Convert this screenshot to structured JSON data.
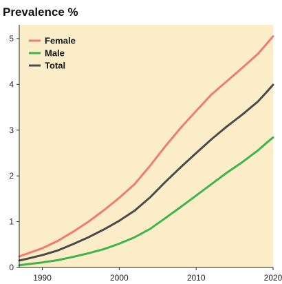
{
  "chart_data": {
    "type": "line",
    "title": "Prevalence %",
    "xlabel": "",
    "ylabel": "",
    "xlim": [
      1987,
      2020
    ],
    "ylim": [
      0,
      5.3
    ],
    "x_ticks": [
      1990,
      2000,
      2010,
      2020
    ],
    "y_ticks": [
      0,
      1,
      2,
      3,
      4,
      5
    ],
    "grid": false,
    "legend_position": "top-left",
    "background_color": "#fbedc8",
    "series": [
      {
        "name": "Female",
        "color": "#f07b6e",
        "x": [
          1987,
          1988,
          1990,
          1992,
          1994,
          1996,
          1998,
          2000,
          2002,
          2004,
          2006,
          2008,
          2010,
          2012,
          2014,
          2016,
          2018,
          2019,
          2020
        ],
        "y": [
          0.24,
          0.3,
          0.42,
          0.58,
          0.78,
          1.0,
          1.25,
          1.52,
          1.82,
          2.22,
          2.65,
          3.05,
          3.42,
          3.78,
          4.07,
          4.36,
          4.66,
          4.85,
          5.05
        ]
      },
      {
        "name": "Male",
        "color": "#3cb44b",
        "x": [
          1987,
          1988,
          1990,
          1992,
          1994,
          1996,
          1998,
          2000,
          2002,
          2004,
          2006,
          2008,
          2010,
          2012,
          2014,
          2016,
          2018,
          2019,
          2020
        ],
        "y": [
          0.05,
          0.07,
          0.11,
          0.16,
          0.23,
          0.31,
          0.4,
          0.52,
          0.66,
          0.84,
          1.08,
          1.32,
          1.57,
          1.82,
          2.07,
          2.3,
          2.55,
          2.7,
          2.84
        ]
      },
      {
        "name": "Total",
        "color": "#4a4a4a",
        "x": [
          1987,
          1988,
          1990,
          1992,
          1994,
          1996,
          1998,
          2000,
          2002,
          2004,
          2006,
          2008,
          2010,
          2012,
          2014,
          2016,
          2018,
          2019,
          2020
        ],
        "y": [
          0.15,
          0.19,
          0.27,
          0.37,
          0.51,
          0.66,
          0.83,
          1.02,
          1.24,
          1.53,
          1.87,
          2.19,
          2.5,
          2.8,
          3.08,
          3.34,
          3.62,
          3.8,
          3.99
        ]
      }
    ]
  }
}
